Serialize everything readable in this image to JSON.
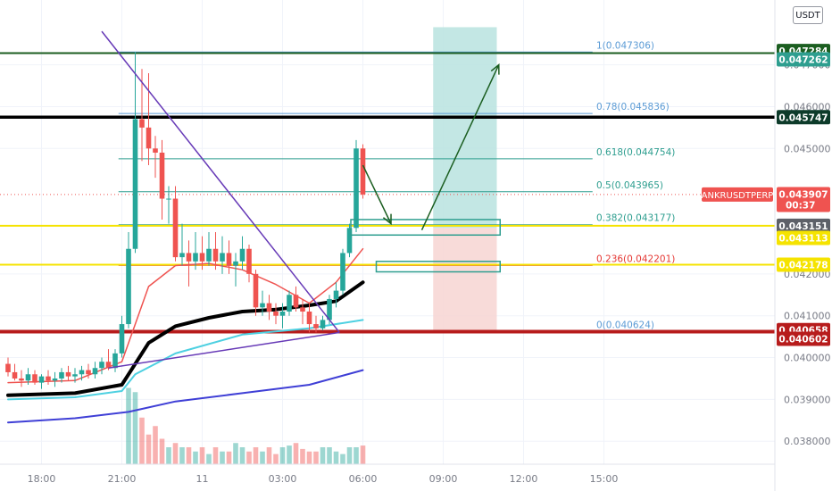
{
  "unit_label": "USDT",
  "symbol": "ANKRUSDTPERP",
  "colors": {
    "up": "#26a69a",
    "down": "#ef5350",
    "black_ma": "#000000",
    "red_ma": "#ef5350",
    "cyan_ma": "#4dd0e1",
    "blue_ma": "#3f3fd6",
    "trendline": "#673ab7",
    "fib_teal": "#2e9e8f",
    "fib_red": "#e53935",
    "fib_blue": "#5b9bd5",
    "yellow": "#f5e300",
    "dark_green": "#1b5e20",
    "dark_red": "#b71c1c",
    "profit_zone": "#b9e3df",
    "loss_zone": "#f7d5d2"
  },
  "chart_data": {
    "type": "candlestick",
    "x_ticks": [
      "18:00",
      "21:00",
      "11",
      "03:00",
      "06:00",
      "09:00",
      "12:00",
      "15:00"
    ],
    "y_ticks": [
      "0.047000",
      "0.046000",
      "0.045000",
      "0.042000",
      "0.041000",
      "0.040000",
      "0.039000",
      "0.038000"
    ],
    "ylim": [
      0.03745,
      0.04855
    ],
    "bar_interval_minutes": 15,
    "first_bar_time": "16:45",
    "candles": [
      {
        "o": 0.03985,
        "h": 0.04,
        "l": 0.03955,
        "c": 0.03965
      },
      {
        "o": 0.03965,
        "h": 0.03985,
        "l": 0.03945,
        "c": 0.0395
      },
      {
        "o": 0.0395,
        "h": 0.0397,
        "l": 0.0393,
        "c": 0.03945
      },
      {
        "o": 0.03945,
        "h": 0.03975,
        "l": 0.03935,
        "c": 0.0396
      },
      {
        "o": 0.0396,
        "h": 0.0397,
        "l": 0.03935,
        "c": 0.0394
      },
      {
        "o": 0.0394,
        "h": 0.0396,
        "l": 0.03925,
        "c": 0.03955
      },
      {
        "o": 0.03955,
        "h": 0.0397,
        "l": 0.03935,
        "c": 0.03945
      },
      {
        "o": 0.03945,
        "h": 0.03965,
        "l": 0.0393,
        "c": 0.0395
      },
      {
        "o": 0.0395,
        "h": 0.03975,
        "l": 0.0394,
        "c": 0.03965
      },
      {
        "o": 0.03965,
        "h": 0.0398,
        "l": 0.03945,
        "c": 0.03955
      },
      {
        "o": 0.03955,
        "h": 0.03975,
        "l": 0.0394,
        "c": 0.0396
      },
      {
        "o": 0.0396,
        "h": 0.0398,
        "l": 0.03945,
        "c": 0.0397
      },
      {
        "o": 0.0397,
        "h": 0.03985,
        "l": 0.0395,
        "c": 0.0396
      },
      {
        "o": 0.0396,
        "h": 0.0399,
        "l": 0.0395,
        "c": 0.03975
      },
      {
        "o": 0.03975,
        "h": 0.04,
        "l": 0.0396,
        "c": 0.0399
      },
      {
        "o": 0.0399,
        "h": 0.0402,
        "l": 0.0397,
        "c": 0.03975
      },
      {
        "o": 0.03975,
        "h": 0.0402,
        "l": 0.03965,
        "c": 0.0401
      },
      {
        "o": 0.0401,
        "h": 0.041,
        "l": 0.04,
        "c": 0.0408
      },
      {
        "o": 0.0408,
        "h": 0.043,
        "l": 0.0407,
        "c": 0.0426
      },
      {
        "o": 0.0426,
        "h": 0.0473,
        "l": 0.0425,
        "c": 0.0457
      },
      {
        "o": 0.0457,
        "h": 0.0469,
        "l": 0.0447,
        "c": 0.0455
      },
      {
        "o": 0.0455,
        "h": 0.0468,
        "l": 0.0446,
        "c": 0.045
      },
      {
        "o": 0.045,
        "h": 0.0453,
        "l": 0.0443,
        "c": 0.0449
      },
      {
        "o": 0.0449,
        "h": 0.0452,
        "l": 0.0433,
        "c": 0.0438
      },
      {
        "o": 0.0438,
        "h": 0.0441,
        "l": 0.0432,
        "c": 0.0438
      },
      {
        "o": 0.0438,
        "h": 0.0441,
        "l": 0.0423,
        "c": 0.0424
      },
      {
        "o": 0.0424,
        "h": 0.0432,
        "l": 0.0422,
        "c": 0.0425
      },
      {
        "o": 0.0425,
        "h": 0.0428,
        "l": 0.0417,
        "c": 0.0423
      },
      {
        "o": 0.0423,
        "h": 0.043,
        "l": 0.0421,
        "c": 0.0425
      },
      {
        "o": 0.0425,
        "h": 0.0429,
        "l": 0.0421,
        "c": 0.0423
      },
      {
        "o": 0.0423,
        "h": 0.043,
        "l": 0.0422,
        "c": 0.0426
      },
      {
        "o": 0.0426,
        "h": 0.043,
        "l": 0.0421,
        "c": 0.0423
      },
      {
        "o": 0.0423,
        "h": 0.0429,
        "l": 0.042,
        "c": 0.0425
      },
      {
        "o": 0.0425,
        "h": 0.0428,
        "l": 0.042,
        "c": 0.0422
      },
      {
        "o": 0.0422,
        "h": 0.0425,
        "l": 0.0417,
        "c": 0.0423
      },
      {
        "o": 0.0423,
        "h": 0.0429,
        "l": 0.0421,
        "c": 0.0426
      },
      {
        "o": 0.0426,
        "h": 0.0427,
        "l": 0.0418,
        "c": 0.042
      },
      {
        "o": 0.042,
        "h": 0.0421,
        "l": 0.041,
        "c": 0.0412
      },
      {
        "o": 0.0412,
        "h": 0.0416,
        "l": 0.041,
        "c": 0.0413
      },
      {
        "o": 0.0413,
        "h": 0.0415,
        "l": 0.0409,
        "c": 0.0411
      },
      {
        "o": 0.0411,
        "h": 0.0413,
        "l": 0.0408,
        "c": 0.041
      },
      {
        "o": 0.041,
        "h": 0.0413,
        "l": 0.0407,
        "c": 0.0411
      },
      {
        "o": 0.0411,
        "h": 0.0416,
        "l": 0.041,
        "c": 0.0415
      },
      {
        "o": 0.0415,
        "h": 0.0417,
        "l": 0.0411,
        "c": 0.0412
      },
      {
        "o": 0.0412,
        "h": 0.0414,
        "l": 0.0408,
        "c": 0.0411
      },
      {
        "o": 0.0411,
        "h": 0.0413,
        "l": 0.0406,
        "c": 0.0408
      },
      {
        "o": 0.0408,
        "h": 0.041,
        "l": 0.0406,
        "c": 0.0407
      },
      {
        "o": 0.0407,
        "h": 0.041,
        "l": 0.04065,
        "c": 0.0409
      },
      {
        "o": 0.0409,
        "h": 0.0415,
        "l": 0.0408,
        "c": 0.0414
      },
      {
        "o": 0.0414,
        "h": 0.0418,
        "l": 0.0412,
        "c": 0.0416
      },
      {
        "o": 0.0416,
        "h": 0.0426,
        "l": 0.0415,
        "c": 0.0425
      },
      {
        "o": 0.0425,
        "h": 0.0432,
        "l": 0.0424,
        "c": 0.0431
      },
      {
        "o": 0.0431,
        "h": 0.0452,
        "l": 0.043,
        "c": 0.045
      },
      {
        "o": 0.045,
        "h": 0.0451,
        "l": 0.0438,
        "c": 0.0439
      }
    ],
    "volumes": [
      0.0,
      0.0,
      0.0,
      0.0,
      0.0,
      0.0,
      0.0,
      0.0,
      0.0,
      0.0,
      0.0,
      0.0,
      0.0,
      0.0,
      0.0,
      0.0,
      0.0,
      0.0,
      0.9,
      0.85,
      0.55,
      0.35,
      0.45,
      0.3,
      0.2,
      0.25,
      0.2,
      0.2,
      0.15,
      0.2,
      0.12,
      0.2,
      0.15,
      0.15,
      0.25,
      0.2,
      0.15,
      0.2,
      0.15,
      0.2,
      0.12,
      0.2,
      0.22,
      0.25,
      0.18,
      0.15,
      0.15,
      0.2,
      0.2,
      0.15,
      0.12,
      0.2,
      0.2,
      0.22
    ],
    "moving_averages": [
      {
        "color_key": "blue_ma",
        "width": 2,
        "points": [
          [
            0,
            0.03845
          ],
          [
            10,
            0.03855
          ],
          [
            18,
            0.0387
          ],
          [
            25,
            0.03895
          ],
          [
            35,
            0.03915
          ],
          [
            45,
            0.03935
          ],
          [
            53,
            0.0397
          ]
        ]
      },
      {
        "color_key": "cyan_ma",
        "width": 2,
        "points": [
          [
            0,
            0.039
          ],
          [
            10,
            0.03905
          ],
          [
            17,
            0.0392
          ],
          [
            19,
            0.0396
          ],
          [
            25,
            0.0401
          ],
          [
            35,
            0.04055
          ],
          [
            45,
            0.0407
          ],
          [
            53,
            0.0409
          ]
        ]
      },
      {
        "color_key": "black_ma",
        "width": 4,
        "points": [
          [
            0,
            0.0391
          ],
          [
            10,
            0.03915
          ],
          [
            17,
            0.03935
          ],
          [
            19,
            0.03985
          ],
          [
            21,
            0.04035
          ],
          [
            25,
            0.04075
          ],
          [
            30,
            0.04095
          ],
          [
            35,
            0.0411
          ],
          [
            40,
            0.04115
          ],
          [
            45,
            0.04125
          ],
          [
            49,
            0.04135
          ],
          [
            53,
            0.0418
          ]
        ]
      },
      {
        "color_key": "red_ma",
        "width": 1.5,
        "points": [
          [
            0,
            0.0394
          ],
          [
            10,
            0.03945
          ],
          [
            17,
            0.0399
          ],
          [
            19,
            0.0408
          ],
          [
            21,
            0.0417
          ],
          [
            25,
            0.0422
          ],
          [
            30,
            0.04225
          ],
          [
            35,
            0.0421
          ],
          [
            40,
            0.04175
          ],
          [
            45,
            0.0413
          ],
          [
            49,
            0.0418
          ],
          [
            53,
            0.0426
          ]
        ]
      }
    ],
    "price_lines": [
      {
        "price": 0.04728,
        "color_key": "dark_green",
        "width": 2
      },
      {
        "price": 0.045747,
        "color_key": "black_ma",
        "width": 3.5
      },
      {
        "price": 0.043151,
        "color_key": "yellow",
        "width": 2
      },
      {
        "price": 0.04222,
        "color_key": "yellow",
        "width": 2
      },
      {
        "price": 0.04062,
        "color_key": "dark_red",
        "width": 4
      }
    ],
    "fib_levels": [
      {
        "label": "1(0.047306)",
        "price": 0.047306,
        "color_key": "fib_blue"
      },
      {
        "label": "0.78(0.045836)",
        "price": 0.045836,
        "color_key": "fib_blue"
      },
      {
        "label": "0.618(0.044754)",
        "price": 0.044754,
        "color_key": "fib_teal"
      },
      {
        "label": "0.5(0.043965)",
        "price": 0.043965,
        "color_key": "fib_teal"
      },
      {
        "label": "0.382(0.043177)",
        "price": 0.043177,
        "color_key": "fib_teal"
      },
      {
        "label": "0.236(0.042201)",
        "price": 0.042201,
        "color_key": "fib_red"
      },
      {
        "label": "0(0.040624)",
        "price": 0.040624,
        "color_key": "fib_blue"
      }
    ],
    "price_badges": [
      {
        "text": "0.047284",
        "price": 0.04733,
        "bg": "#1b5e20"
      },
      {
        "text": "0.047262",
        "price": 0.04713,
        "bg": "#2e9e8f"
      },
      {
        "text": "0.045747",
        "price": 0.045747,
        "bg": "#0d3b2a"
      },
      {
        "text": "0.043907",
        "price": 0.043907,
        "bg": "#ef5350",
        "sub": "00:37"
      },
      {
        "text": "0.043151",
        "price": 0.043151,
        "bg": "#5d6068"
      },
      {
        "text": "0.043113",
        "price": 0.042862,
        "bg": "#f5e300",
        "dark_text": true
      },
      {
        "text": "0.042178",
        "price": 0.04222,
        "bg": "#f5e300",
        "dark_text": true
      },
      {
        "text": "0.040658",
        "price": 0.040658,
        "bg": "#b71c1c"
      },
      {
        "text": "0.040602",
        "price": 0.04045,
        "bg": "#b71c1c"
      }
    ],
    "trendlines": [
      {
        "from": [
          14.0,
          0.0478
        ],
        "to": [
          49.5,
          0.0406
        ]
      },
      {
        "from": [
          15.0,
          0.03975
        ],
        "to": [
          49.5,
          0.0406
        ]
      }
    ],
    "position": {
      "from_x": 63.5,
      "to_x": 73.0,
      "entry": 0.0431,
      "target": 0.0479,
      "stop": 0.0406
    },
    "boxes": [
      {
        "x1": 51.2,
        "x2": 73.5,
        "p1": 0.0433,
        "p2": 0.04293,
        "color_key": "fib_teal"
      },
      {
        "x1": 55.0,
        "x2": 73.5,
        "p1": 0.0423,
        "p2": 0.04205,
        "color_key": "fib_teal"
      }
    ],
    "arrows": [
      {
        "points": [
          [
            53.0,
            0.0446
          ],
          [
            57.2,
            0.0432
          ]
        ],
        "color_key": "dark_green"
      },
      {
        "points": [
          [
            61.8,
            0.04305
          ],
          [
            73.3,
            0.047
          ]
        ],
        "color_key": "dark_green"
      }
    ]
  }
}
